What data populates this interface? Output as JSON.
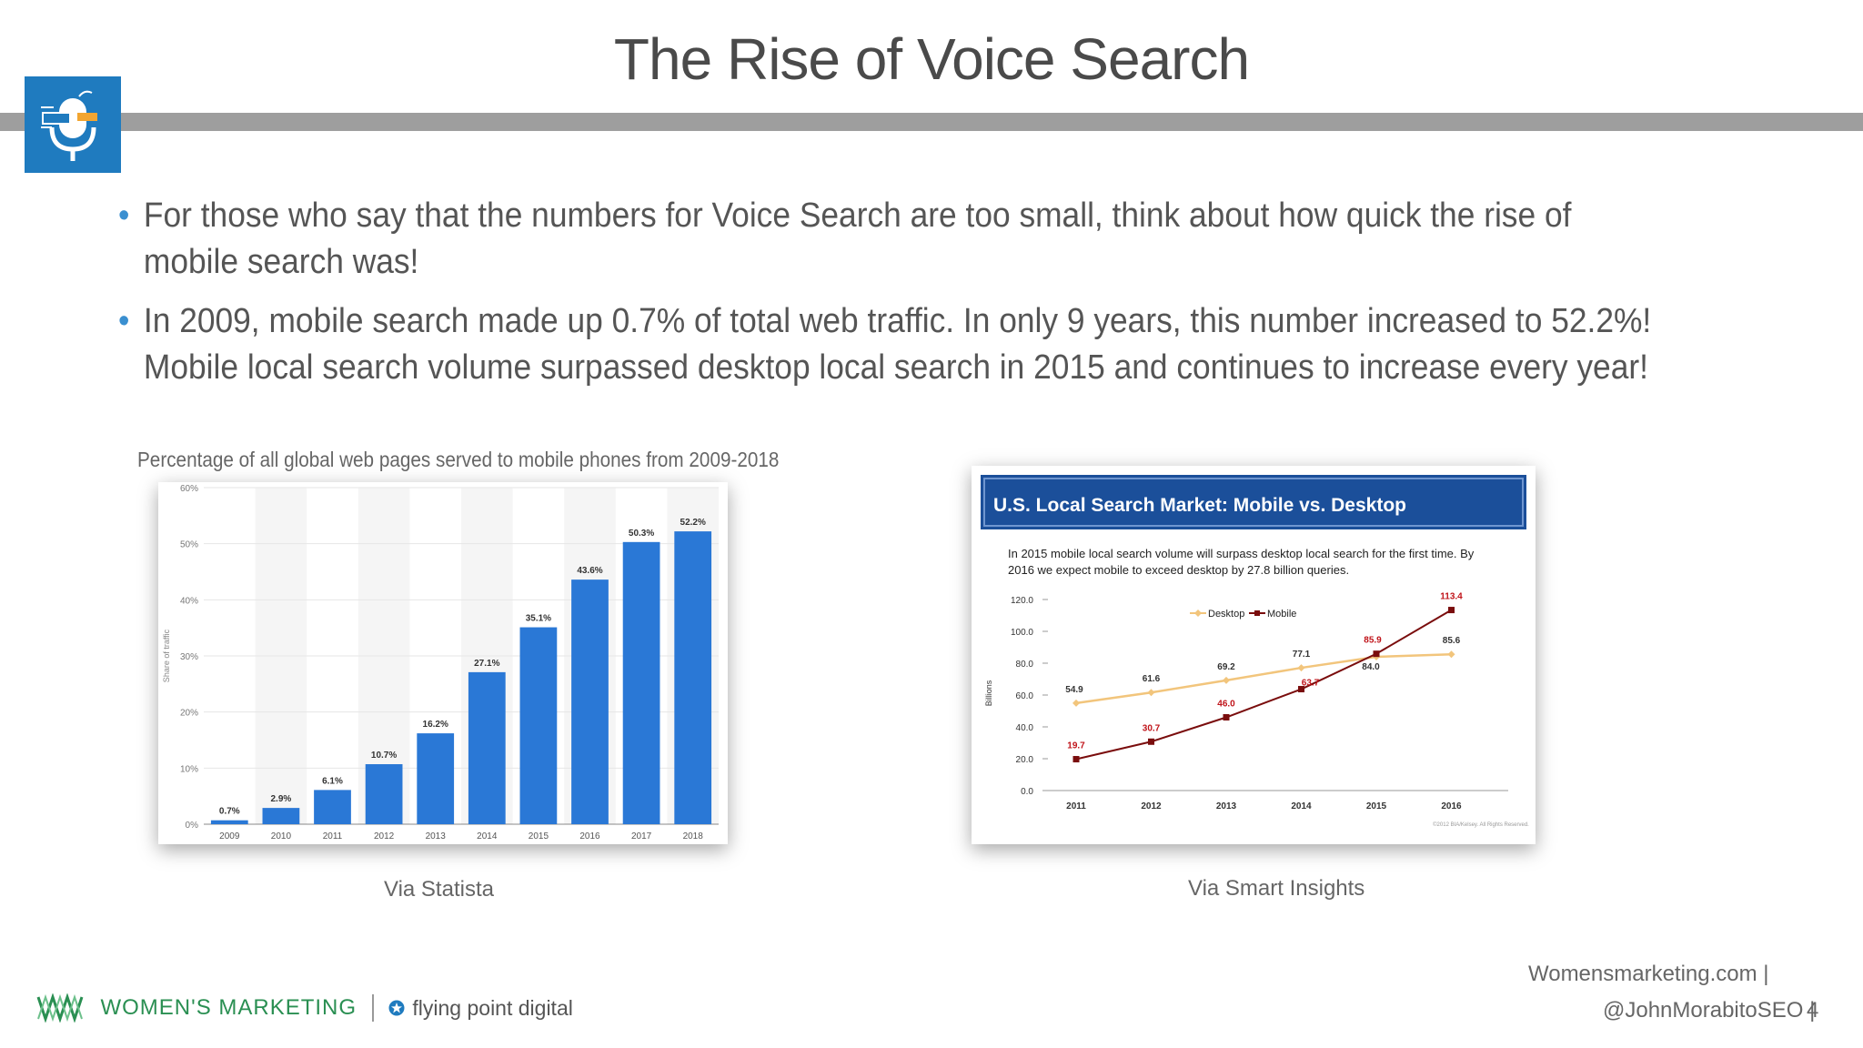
{
  "title": "The Rise of Voice Search",
  "bullets": [
    "For those who say that the numbers for Voice Search are too small, think about how quick the rise of mobile search was!",
    "In 2009, mobile search made up 0.7% of total web traffic. In only 9 years, this number increased to 52.2%! Mobile local search volume surpassed desktop local search in 2015 and continues to increase every year!"
  ],
  "bullet_char": "•",
  "chart1_caption": "Percentage of all global web pages served to mobile phones from 2009-2018",
  "chart1_via": "Via Statista",
  "chart2_via": "Via Smart Insights",
  "footer": {
    "brand": "WOMEN'S MARKETING",
    "partner": "flying point digital",
    "site": "Womensmarketing.com |",
    "handle": "@JohnMorabitoSEO |",
    "page": "4"
  },
  "colors": {
    "bar": "#2a78d6",
    "desktop": "#f2c57c",
    "mobile": "#7a0d0d",
    "banner": "#1b4f9a",
    "accent": "#1f7bbf"
  },
  "chart_data": [
    {
      "type": "bar",
      "categories": [
        "2009",
        "2010",
        "2011",
        "2012",
        "2013",
        "2014",
        "2015",
        "2016",
        "2017",
        "2018"
      ],
      "values": [
        0.7,
        2.9,
        6.1,
        10.7,
        16.2,
        27.1,
        35.1,
        43.6,
        50.3,
        52.2
      ],
      "value_labels": [
        "0.7%",
        "2.9%",
        "6.1%",
        "10.7%",
        "16.2%",
        "27.1%",
        "35.1%",
        "43.6%",
        "50.3%",
        "52.2%"
      ],
      "ylim": [
        0,
        60
      ],
      "yticks": [
        "0%",
        "10%",
        "20%",
        "30%",
        "40%",
        "50%",
        "60%"
      ],
      "ylabel": "Share of traffic",
      "grid": true
    },
    {
      "type": "line",
      "title": "U.S. Local Search Market: Mobile vs. Desktop",
      "subtitle": "In 2015 mobile local search volume will surpass desktop local search for the first time. By 2016 we expect mobile to exceed desktop by 27.8 billion queries.",
      "x": [
        "2011",
        "2012",
        "2013",
        "2014",
        "2015",
        "2016"
      ],
      "series": [
        {
          "name": "Desktop",
          "values": [
            54.9,
            61.6,
            69.2,
            77.1,
            84.0,
            85.6
          ],
          "labels": [
            "54.9",
            "61.6",
            "69.2",
            "77.1",
            "84.0",
            "85.6"
          ]
        },
        {
          "name": "Mobile",
          "values": [
            19.7,
            30.7,
            46.0,
            63.7,
            85.9,
            113.4
          ],
          "labels": [
            "19.7",
            "30.7",
            "46.0",
            "63.7",
            "85.9",
            "113.4"
          ]
        }
      ],
      "ylabel": "Billions",
      "ylim": [
        0,
        120
      ],
      "yticks": [
        "0.0",
        "20.0",
        "40.0",
        "60.0",
        "80.0",
        "100.0",
        "120.0"
      ],
      "legend": "top-left",
      "footnote": "©2012 BIA/Kelsey. All Rights Reserved."
    }
  ]
}
